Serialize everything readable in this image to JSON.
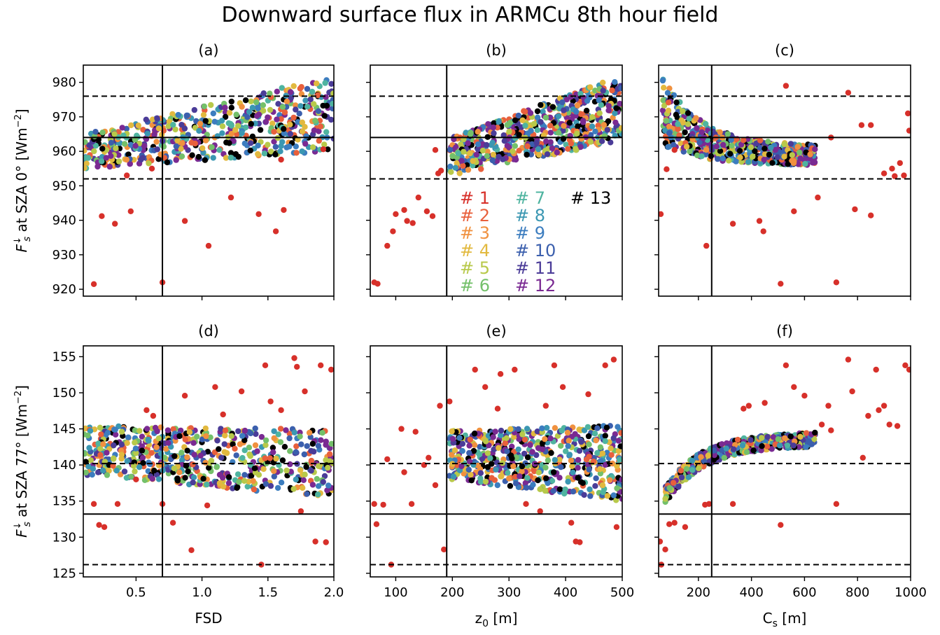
{
  "figure": {
    "title": "Downward surface flux in ARMCu 8th hour field"
  },
  "legend": {
    "entries": [
      {
        "label": "# 1",
        "color": "#d7302a"
      },
      {
        "label": "# 2",
        "color": "#e8603c"
      },
      {
        "label": "# 3",
        "color": "#f0913f"
      },
      {
        "label": "# 4",
        "color": "#e2b93f"
      },
      {
        "label": "# 5",
        "color": "#b8c94a"
      },
      {
        "label": "# 6",
        "color": "#74c06a"
      },
      {
        "label": "# 7",
        "color": "#4fb4a0"
      },
      {
        "label": "# 8",
        "color": "#3b97b2"
      },
      {
        "label": "# 9",
        "color": "#3c7dbf"
      },
      {
        "label": "# 10",
        "color": "#3b5fad"
      },
      {
        "label": "# 11",
        "color": "#4b3c98"
      },
      {
        "label": "# 12",
        "color": "#7a2a92"
      },
      {
        "label": "# 13",
        "color": "#000000"
      }
    ]
  },
  "colors": {
    "series": [
      "#d7302a",
      "#e8603c",
      "#f0913f",
      "#e2b93f",
      "#b8c94a",
      "#74c06a",
      "#4fb4a0",
      "#3b97b2",
      "#3c7dbf",
      "#3b5fad",
      "#4b3c98",
      "#7a2a92",
      "#000000"
    ]
  },
  "chart_data": [
    {
      "type": "scatter",
      "panel": "(a)",
      "xlabel": "",
      "ylabel": "F_s↓ at SZA 0° [Wm^-2]",
      "xlim": [
        0.1,
        2.0
      ],
      "ylim": [
        918,
        985
      ],
      "xticks": [
        0.5,
        1.0,
        1.5,
        2.0
      ],
      "xtick_labels": [
        "",
        "",
        "",
        ""
      ],
      "yticks": [
        920,
        930,
        940,
        950,
        960,
        970,
        980
      ],
      "ytick_labels": [
        "920",
        "930",
        "940",
        "950",
        "960",
        "970",
        "980"
      ],
      "vline": 0.7,
      "hline": 964,
      "hline_dashed": [
        952,
        976
      ],
      "cloud": {
        "shape": "linear",
        "x": [
          0.1,
          2.0
        ],
        "y_low_start": 955,
        "y_low_end": 960,
        "y_high_start": 965,
        "y_high_end": 982,
        "count": 600
      },
      "outliers": [
        [
          0.18,
          921.5
        ],
        [
          0.24,
          941.2
        ],
        [
          0.34,
          939
        ],
        [
          0.46,
          942.6
        ],
        [
          0.7,
          922
        ],
        [
          0.87,
          939.8
        ],
        [
          1.05,
          932.6
        ],
        [
          1.22,
          946.6
        ],
        [
          1.43,
          941.8
        ],
        [
          1.56,
          936.8
        ],
        [
          1.62,
          943
        ],
        [
          0.43,
          953
        ],
        [
          0.62,
          955
        ],
        [
          1.6,
          957.6
        ],
        [
          1.92,
          960.6
        ]
      ]
    },
    {
      "type": "scatter",
      "panel": "(b)",
      "xlabel": "",
      "ylabel": "",
      "xlim": [
        55,
        500
      ],
      "ylim": [
        918,
        985
      ],
      "xticks": [
        100,
        200,
        300,
        400,
        500
      ],
      "xtick_labels": [
        "",
        "",
        "",
        "",
        ""
      ],
      "yticks": [
        920,
        930,
        940,
        950,
        960,
        970,
        980
      ],
      "ytick_labels": [
        "",
        "",
        "",
        "",
        "",
        "",
        ""
      ],
      "vline": 190,
      "hline": 964,
      "hline_dashed": [
        952,
        976
      ],
      "cloud": {
        "shape": "linear",
        "x": [
          195,
          500
        ],
        "y_low_start": 953,
        "y_low_end": 963,
        "y_high_start": 964,
        "y_high_end": 982,
        "count": 600
      },
      "outliers": [
        [
          62,
          922
        ],
        [
          68,
          921.6
        ],
        [
          85,
          932.6
        ],
        [
          95,
          936.8
        ],
        [
          100,
          941.8
        ],
        [
          115,
          943
        ],
        [
          120,
          939.8
        ],
        [
          130,
          939.2
        ],
        [
          140,
          946.6
        ],
        [
          155,
          942.6
        ],
        [
          165,
          941.2
        ],
        [
          175,
          953.6
        ],
        [
          180,
          954.4
        ],
        [
          170,
          960.4
        ]
      ]
    },
    {
      "type": "scatter",
      "panel": "(c)",
      "xlabel": "",
      "ylabel": "",
      "xlim": [
        50,
        1000
      ],
      "ylim": [
        918,
        985
      ],
      "xticks": [
        200,
        400,
        600,
        800,
        1000
      ],
      "xtick_labels": [
        "",
        "",
        "",
        "",
        ""
      ],
      "yticks": [
        920,
        930,
        940,
        950,
        960,
        970,
        980
      ],
      "ytick_labels": [
        "",
        "",
        "",
        "",
        "",
        "",
        ""
      ],
      "vline": 250,
      "hline": 964,
      "hline_dashed": [
        952,
        976
      ],
      "cloud": {
        "shape": "decay",
        "x": [
          65,
          640
        ],
        "y_low_start": 962,
        "y_low_end": 956,
        "y_high_start": 982,
        "y_high_end": 962,
        "count": 600
      },
      "outliers": [
        [
          58,
          941.8
        ],
        [
          80,
          954.8
        ],
        [
          110,
          960.4
        ],
        [
          230,
          932.6
        ],
        [
          330,
          939
        ],
        [
          430,
          939.8
        ],
        [
          445,
          936.8
        ],
        [
          510,
          921.6
        ],
        [
          560,
          942.6
        ],
        [
          650,
          946.6
        ],
        [
          720,
          922
        ],
        [
          790,
          943.2
        ],
        [
          815,
          967.6
        ],
        [
          850,
          941.4
        ],
        [
          530,
          979
        ],
        [
          765,
          977
        ],
        [
          850,
          967.6
        ],
        [
          900,
          953.6
        ],
        [
          930,
          955
        ],
        [
          960,
          956.6
        ],
        [
          975,
          953
        ],
        [
          990,
          971
        ],
        [
          995,
          966
        ],
        [
          700,
          964
        ],
        [
          940,
          952.8
        ]
      ]
    },
    {
      "type": "scatter",
      "panel": "(d)",
      "xlabel": "FSD",
      "ylabel": "F_s↓ at SZA 77° [Wm^-2]",
      "xlim": [
        0.1,
        2.0
      ],
      "ylim": [
        124.5,
        156.5
      ],
      "xticks": [
        0.5,
        1.0,
        1.5,
        2.0
      ],
      "xtick_labels": [
        "0.5",
        "1.0",
        "1.5",
        "2.0"
      ],
      "yticks": [
        125,
        130,
        135,
        140,
        145,
        150,
        155
      ],
      "ytick_labels": [
        "125",
        "130",
        "135",
        "140",
        "145",
        "150",
        "155"
      ],
      "vline": 0.7,
      "hline": 133.2,
      "hline_dashed": [
        126.2,
        140.2
      ],
      "cloud": {
        "shape": "band",
        "x": [
          0.1,
          2.0
        ],
        "y_low_start": 138.5,
        "y_low_end": 135.5,
        "y_high_start": 145.5,
        "y_high_end": 145,
        "count": 600
      },
      "outliers": [
        [
          0.18,
          134.6
        ],
        [
          0.22,
          131.7
        ],
        [
          0.26,
          131.4
        ],
        [
          0.36,
          134.6
        ],
        [
          0.63,
          146.8
        ],
        [
          0.7,
          134.6
        ],
        [
          0.78,
          132
        ],
        [
          0.87,
          149.6
        ],
        [
          0.92,
          128.2
        ],
        [
          1.04,
          134.4
        ],
        [
          1.1,
          150.8
        ],
        [
          1.16,
          147
        ],
        [
          1.3,
          150.2
        ],
        [
          1.48,
          153.8
        ],
        [
          1.52,
          148.8
        ],
        [
          1.6,
          147.6
        ],
        [
          1.7,
          154.8
        ],
        [
          1.72,
          153.6
        ],
        [
          1.78,
          150.2
        ],
        [
          1.86,
          129.4
        ],
        [
          1.9,
          153.8
        ],
        [
          1.94,
          129.3
        ],
        [
          1.98,
          153.2
        ],
        [
          0.58,
          147.6
        ],
        [
          1.45,
          126.2
        ],
        [
          0.5,
          138
        ],
        [
          1.75,
          133.6
        ]
      ]
    },
    {
      "type": "scatter",
      "panel": "(e)",
      "xlabel": "z_0 [m]",
      "ylabel": "",
      "xlim": [
        55,
        500
      ],
      "ylim": [
        124.5,
        156.5
      ],
      "xticks": [
        100,
        200,
        300,
        400,
        500
      ],
      "xtick_labels": [
        "100",
        "200",
        "300",
        "400",
        "500"
      ],
      "yticks": [
        125,
        130,
        135,
        140,
        145,
        150,
        155
      ],
      "ytick_labels": [
        "",
        "",
        "",
        "",
        "",
        "",
        ""
      ],
      "vline": 190,
      "hline": 133.2,
      "hline_dashed": [
        126.2,
        140.2
      ],
      "cloud": {
        "shape": "band",
        "x": [
          195,
          500
        ],
        "y_low_start": 138,
        "y_low_end": 135,
        "y_high_start": 144.8,
        "y_high_end": 145.5,
        "count": 600
      },
      "outliers": [
        [
          62,
          134.6
        ],
        [
          66,
          131.8
        ],
        [
          78,
          134.5
        ],
        [
          85,
          140.8
        ],
        [
          92,
          126.2
        ],
        [
          110,
          145
        ],
        [
          115,
          139
        ],
        [
          128,
          134.6
        ],
        [
          135,
          144.6
        ],
        [
          150,
          140
        ],
        [
          158,
          141
        ],
        [
          170,
          137.2
        ],
        [
          178,
          148.2
        ],
        [
          185,
          128.3
        ],
        [
          195,
          148.8
        ],
        [
          240,
          153.2
        ],
        [
          258,
          150.8
        ],
        [
          280,
          147.8
        ],
        [
          285,
          152.6
        ],
        [
          310,
          153.2
        ],
        [
          330,
          134.6
        ],
        [
          355,
          133.6
        ],
        [
          365,
          148.2
        ],
        [
          380,
          153.8
        ],
        [
          395,
          150.8
        ],
        [
          410,
          132
        ],
        [
          418,
          129.4
        ],
        [
          425,
          129.3
        ],
        [
          440,
          149.8
        ],
        [
          470,
          153.8
        ],
        [
          485,
          154.6
        ],
        [
          490,
          131.4
        ]
      ]
    },
    {
      "type": "scatter",
      "panel": "(f)",
      "xlabel": "C_s [m]",
      "ylabel": "",
      "xlim": [
        50,
        1000
      ],
      "ylim": [
        124.5,
        156.5
      ],
      "xticks": [
        200,
        400,
        600,
        800,
        1000
      ],
      "xtick_labels": [
        "200",
        "400",
        "600",
        "800",
        "1000"
      ],
      "yticks": [
        125,
        130,
        135,
        140,
        145,
        150,
        155
      ],
      "ytick_labels": [
        "",
        "",
        "",
        "",
        "",
        "",
        ""
      ],
      "vline": 250,
      "hline": 133.2,
      "hline_dashed": [
        126.2,
        140.2
      ],
      "cloud": {
        "shape": "rise",
        "x": [
          75,
          640
        ],
        "y_low_start": 134.5,
        "y_low_end": 142.5,
        "y_high_start": 137,
        "y_high_end": 144.5,
        "count": 600
      },
      "outliers": [
        [
          55,
          129.4
        ],
        [
          60,
          126.2
        ],
        [
          75,
          128.3
        ],
        [
          90,
          131.8
        ],
        [
          110,
          132
        ],
        [
          150,
          131.4
        ],
        [
          225,
          134.5
        ],
        [
          240,
          134.6
        ],
        [
          330,
          134.6
        ],
        [
          370,
          147.8
        ],
        [
          390,
          148.2
        ],
        [
          450,
          148.6
        ],
        [
          510,
          131.7
        ],
        [
          530,
          153.8
        ],
        [
          560,
          150.8
        ],
        [
          600,
          149.6
        ],
        [
          690,
          148.2
        ],
        [
          720,
          134.6
        ],
        [
          765,
          154.6
        ],
        [
          780,
          150.2
        ],
        [
          820,
          141
        ],
        [
          840,
          146.8
        ],
        [
          870,
          153.2
        ],
        [
          880,
          147.6
        ],
        [
          900,
          148.2
        ],
        [
          920,
          145.6
        ],
        [
          950,
          145.4
        ],
        [
          980,
          153.8
        ],
        [
          995,
          153.2
        ],
        [
          665,
          145.6
        ],
        [
          700,
          144.8
        ]
      ]
    }
  ]
}
